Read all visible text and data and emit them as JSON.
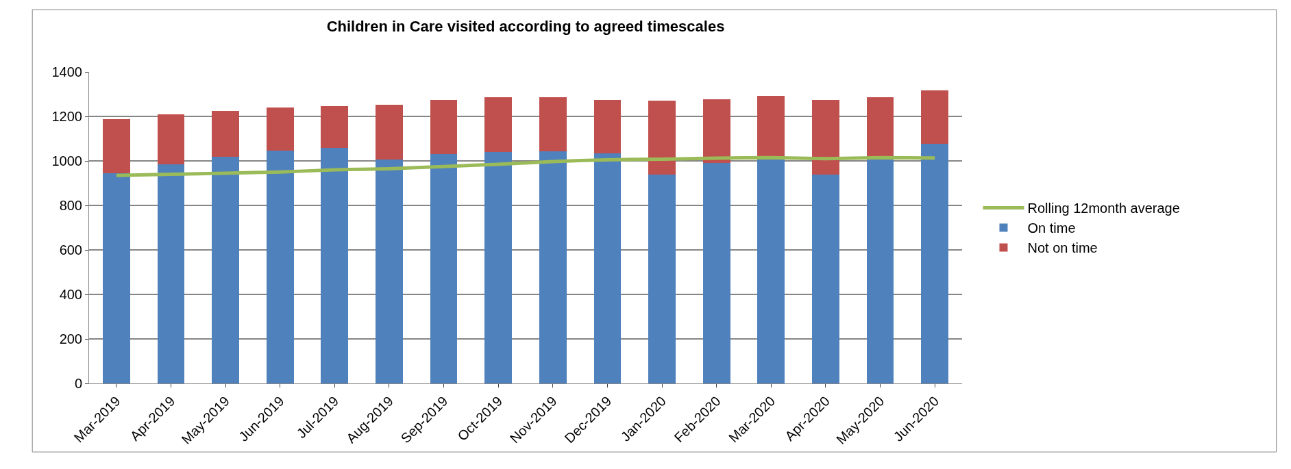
{
  "chart_data": {
    "type": "bar",
    "title": "Children in Care visited according to agreed timescales",
    "categories": [
      "Mar-2019",
      "Apr-2019",
      "May-2019",
      "Jun-2019",
      "Jul-2019",
      "Aug-2019",
      "Sep-2019",
      "Oct-2019",
      "Nov-2019",
      "Dec-2019",
      "Jan-2020",
      "Feb-2020",
      "Mar-2020",
      "Apr-2020",
      "May-2020",
      "Jun-2020"
    ],
    "stacked": true,
    "series": [
      {
        "name": "On time",
        "color": "#4f81bd",
        "values": [
          945,
          985,
          1020,
          1045,
          1060,
          1005,
          1030,
          1040,
          1043,
          1033,
          940,
          990,
          1005,
          940,
          1010,
          1078
        ]
      },
      {
        "name": "Not on time",
        "color": "#c0504d",
        "values": [
          243,
          225,
          205,
          195,
          185,
          247,
          243,
          247,
          244,
          240,
          330,
          287,
          287,
          335,
          275,
          240
        ]
      },
      {
        "name": "Rolling 12month average",
        "type": "line",
        "color": "#9bbb59",
        "values": [
          935,
          940,
          945,
          950,
          960,
          965,
          975,
          985,
          997,
          1005,
          1008,
          1012,
          1015,
          1010,
          1015,
          1013
        ]
      }
    ],
    "ylim": [
      0,
      1400
    ],
    "yticks": [
      0,
      200,
      400,
      600,
      800,
      1000,
      1200,
      1400
    ],
    "grid": "y",
    "legend": "right",
    "marker": "none"
  }
}
